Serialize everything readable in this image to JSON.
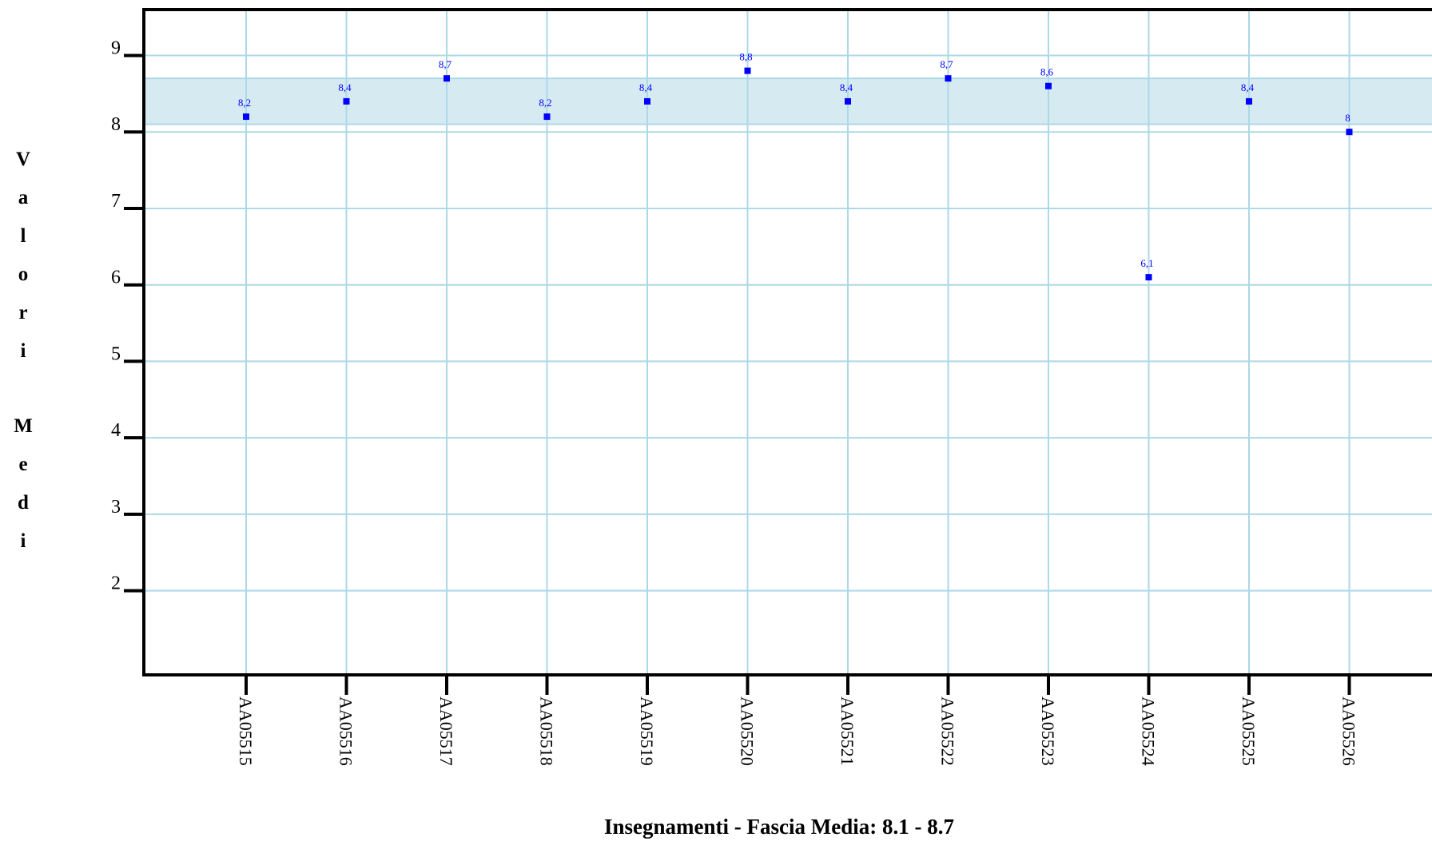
{
  "chart_data": {
    "type": "scatter",
    "title": "",
    "xlabel": "Insegnamenti - Fascia Media: 8.1 - 8.7",
    "ylabel": "Valori Medi",
    "categories": [
      "AA05515",
      "AA05516",
      "AA05517",
      "AA05518",
      "AA05519",
      "AA05520",
      "AA05521",
      "AA05522",
      "AA05523",
      "AA05524",
      "AA05525",
      "AA05526"
    ],
    "values": [
      8.2,
      8.4,
      8.7,
      8.2,
      8.4,
      8.8,
      8.4,
      8.7,
      8.6,
      6.1,
      8.4,
      8.0
    ],
    "value_labels": [
      "8,2",
      "8,4",
      "8,7",
      "8,2",
      "8,4",
      "8,8",
      "8,4",
      "8,7",
      "8,6",
      "6,1",
      "8,4",
      "8"
    ],
    "yticks": [
      "2",
      "3",
      "4",
      "5",
      "6",
      "7",
      "8",
      "9"
    ],
    "ylim": [
      0.9,
      9.6
    ],
    "band": [
      8.1,
      8.7
    ],
    "grid": true,
    "colors": {
      "point": "#0000ff",
      "grid": "#add8e6",
      "band": "#d6eaf2",
      "axis": "#000000"
    }
  }
}
